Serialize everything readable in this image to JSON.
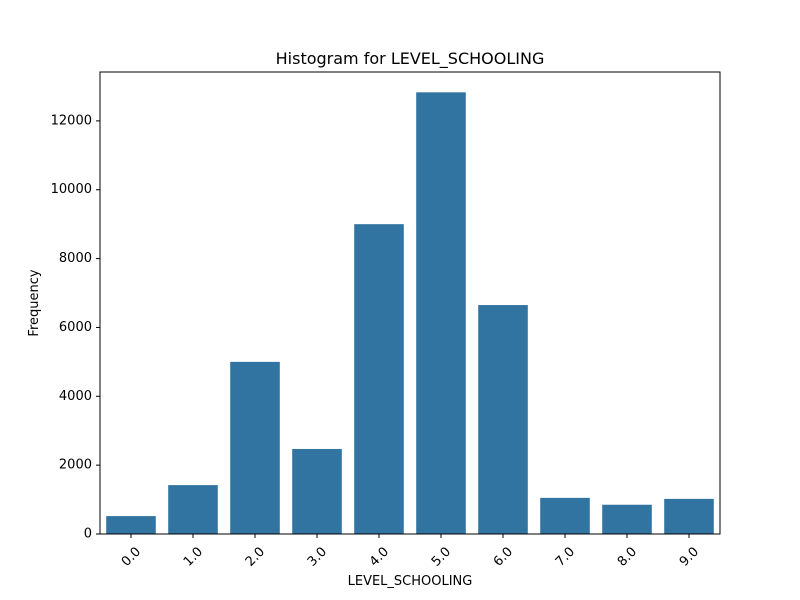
{
  "chart_data": {
    "type": "bar",
    "title": "Histogram for LEVEL_SCHOOLING",
    "xlabel": "LEVEL_SCHOOLING",
    "ylabel": "Frequency",
    "categories": [
      "0.0",
      "1.0",
      "2.0",
      "3.0",
      "4.0",
      "5.0",
      "6.0",
      "7.0",
      "8.0",
      "9.0"
    ],
    "values": [
      520,
      1420,
      5000,
      2470,
      9000,
      12830,
      6650,
      1050,
      850,
      1020
    ],
    "ylim": [
      0,
      13420
    ],
    "yticks": [
      "0",
      "2000",
      "4000",
      "6000",
      "8000",
      "10000",
      "12000"
    ],
    "grid": false,
    "bar_color": "#3274a1"
  }
}
